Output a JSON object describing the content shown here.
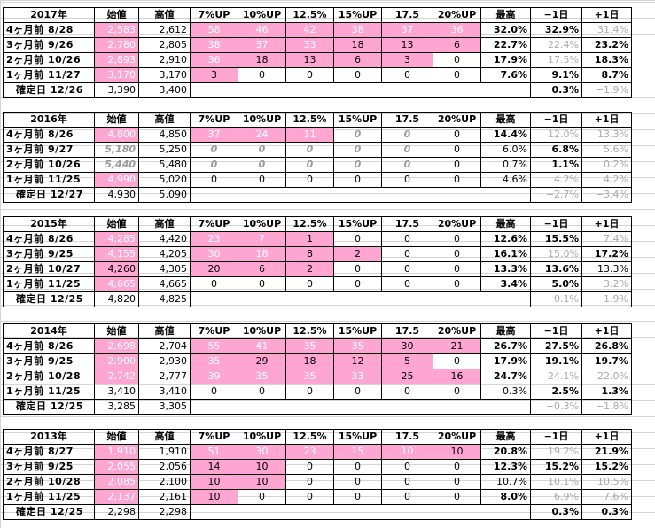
{
  "headers": [
    "始値",
    "高値",
    "7%UP",
    "10%UP",
    "12.5%",
    "15%UP",
    "17.5",
    "20%UP",
    "最高",
    "−1日",
    "+1日"
  ],
  "blocks": [
    {
      "year": "2017年",
      "rows": [
        {
          "label": "4ヶ月前 8/28",
          "start": "2,583",
          "high": "2,612",
          "c7": "58",
          "c10": "46",
          "c125": "42",
          "c15": "38",
          "c175": "37",
          "c20": "36",
          "max": "32.0%",
          "m1": "32.9%",
          "p1": "31.4%"
        },
        {
          "label": "3ヶ月前 9/26",
          "start": "2,780",
          "high": "2,805",
          "c7": "38",
          "c10": "37",
          "c125": "33",
          "c15": "18",
          "c175": "13",
          "c20": "6",
          "max": "22.7%",
          "m1": "22.4%",
          "p1": "23.2%"
        },
        {
          "label": "2ヶ月前 10/26",
          "start": "2,893",
          "high": "2,910",
          "c7": "36",
          "c10": "18",
          "c125": "13",
          "c15": "6",
          "c175": "3",
          "c20": "0",
          "max": "17.9%",
          "m1": "17.5%",
          "p1": "18.3%"
        },
        {
          "label": "1ヶ月前 11/27",
          "start": "3,170",
          "high": "3,170",
          "c7": "3",
          "c10": "0",
          "c125": "0",
          "c15": "0",
          "c175": "0",
          "c20": "0",
          "max": "7.6%",
          "m1": "9.1%",
          "p1": "8.7%"
        }
      ],
      "final": {
        "label": "確定日 12/26",
        "start": "3,390",
        "high": "3,400",
        "m1": "0.3%",
        "p1": "−1.9%"
      }
    },
    {
      "year": "2016年",
      "rows": [
        {
          "label": "4ヶ月前 8/26",
          "start": "4,800",
          "high": "4,850",
          "c7": "37",
          "c10": "24",
          "c125": "11",
          "c15": "0",
          "c175": "0",
          "c20": "0",
          "max": "14.4%",
          "m1": "12.0%",
          "p1": "13.3%"
        },
        {
          "label": "3ヶ月前 9/27",
          "start": "5,180",
          "high": "5,250",
          "c7": "0",
          "c10": "0",
          "c125": "0",
          "c15": "0",
          "c175": "0",
          "c20": "0",
          "max": "6.0%",
          "m1": "6.8%",
          "p1": "5.6%"
        },
        {
          "label": "2ヶ月前 10/26",
          "start": "5,440",
          "high": "5,480",
          "c7": "0",
          "c10": "0",
          "c125": "0",
          "c15": "0",
          "c175": "0",
          "c20": "0",
          "max": "0.7%",
          "m1": "1.1%",
          "p1": "0.2%"
        },
        {
          "label": "1ヶ月前 11/25",
          "start": "4,990",
          "high": "5,020",
          "c7": "0",
          "c10": "0",
          "c125": "0",
          "c15": "0",
          "c175": "0",
          "c20": "0",
          "max": "4.6%",
          "m1": "4.2%",
          "p1": "4.2%"
        }
      ],
      "final": {
        "label": "確定日 12/27",
        "start": "4,930",
        "high": "5,090",
        "m1": "−2.7%",
        "p1": "−3.4%"
      }
    },
    {
      "year": "2015年",
      "rows": [
        {
          "label": "4ヶ月前 8/26",
          "start": "4,285",
          "high": "4,420",
          "c7": "23",
          "c10": "7",
          "c125": "1",
          "c15": "0",
          "c175": "0",
          "c20": "0",
          "max": "12.6%",
          "m1": "15.5%",
          "p1": "7.4%"
        },
        {
          "label": "3ヶ月前 9/25",
          "start": "4,155",
          "high": "4,205",
          "c7": "30",
          "c10": "18",
          "c125": "8",
          "c15": "2",
          "c175": "0",
          "c20": "0",
          "max": "16.1%",
          "m1": "15.0%",
          "p1": "17.2%"
        },
        {
          "label": "2ヶ月前 10/27",
          "start": "4,260",
          "high": "4,305",
          "c7": "20",
          "c10": "6",
          "c125": "2",
          "c15": "0",
          "c175": "0",
          "c20": "0",
          "max": "13.3%",
          "m1": "13.6%",
          "p1": "13.3%"
        },
        {
          "label": "1ヶ月前 11/25",
          "start": "4,665",
          "high": "4,665",
          "c7": "0",
          "c10": "0",
          "c125": "0",
          "c15": "0",
          "c175": "0",
          "c20": "0",
          "max": "3.4%",
          "m1": "5.0%",
          "p1": "3.2%"
        }
      ],
      "final": {
        "label": "確定日 12/25",
        "start": "4,820",
        "high": "4,825",
        "m1": "−0.1%",
        "p1": "−1.9%"
      }
    },
    {
      "year": "2014年",
      "rows": [
        {
          "label": "4ヶ月前 8/26",
          "start": "2,698",
          "high": "2,704",
          "c7": "55",
          "c10": "41",
          "c125": "35",
          "c15": "35",
          "c175": "30",
          "c20": "21",
          "max": "26.7%",
          "m1": "27.5%",
          "p1": "26.8%"
        },
        {
          "label": "3ヶ月前 9/25",
          "start": "2,900",
          "high": "2,930",
          "c7": "35",
          "c10": "29",
          "c125": "18",
          "c15": "12",
          "c175": "5",
          "c20": "0",
          "max": "17.9%",
          "m1": "19.1%",
          "p1": "19.7%"
        },
        {
          "label": "2ヶ月前 10/28",
          "start": "2,742",
          "high": "2,777",
          "c7": "39",
          "c10": "35",
          "c125": "35",
          "c15": "33",
          "c175": "25",
          "c20": "16",
          "max": "24.7%",
          "m1": "24.1%",
          "p1": "22.0%"
        },
        {
          "label": "1ヶ月前 11/25",
          "start": "3,410",
          "high": "3,410",
          "c7": "0",
          "c10": "0",
          "c125": "0",
          "c15": "0",
          "c175": "0",
          "c20": "0",
          "max": "0.3%",
          "m1": "2.5%",
          "p1": "1.3%"
        }
      ],
      "final": {
        "label": "確定日 12/25",
        "start": "3,285",
        "high": "3,305",
        "m1": "−0.3%",
        "p1": "−1.8%"
      }
    },
    {
      "year": "2013年",
      "rows": [
        {
          "label": "4ヶ月前 8/27",
          "start": "1,910",
          "high": "1,910",
          "c7": "51",
          "c10": "30",
          "c125": "23",
          "c15": "15",
          "c175": "10",
          "c20": "10",
          "max": "20.8%",
          "m1": "19.2%",
          "p1": "21.9%"
        },
        {
          "label": "3ヶ月前 9/25",
          "start": "2,055",
          "high": "2,056",
          "c7": "14",
          "c10": "10",
          "c125": "0",
          "c15": "0",
          "c175": "0",
          "c20": "0",
          "max": "12.3%",
          "m1": "15.2%",
          "p1": "15.2%"
        },
        {
          "label": "2ヶ月前 10/28",
          "start": "2,085",
          "high": "2,100",
          "c7": "10",
          "c10": "10",
          "c125": "0",
          "c15": "0",
          "c175": "0",
          "c20": "0",
          "max": "10.7%",
          "m1": "10.1%",
          "p1": "10.5%"
        },
        {
          "label": "1ヶ月前 11/25",
          "start": "2,137",
          "high": "2,161",
          "c7": "10",
          "c10": "0",
          "c125": "0",
          "c15": "0",
          "c175": "0",
          "c20": "0",
          "max": "8.0%",
          "m1": "6.9%",
          "p1": "7.6%"
        }
      ],
      "final": {
        "label": "確定日 12/25",
        "start": "2,298",
        "high": "2,298",
        "m1": "0.3%",
        "p1": "0.3%"
      }
    }
  ],
  "colors": {
    "highlight": "#ffa5d2",
    "muted": "#a9a9a9",
    "grid": "#d4d4d4"
  }
}
